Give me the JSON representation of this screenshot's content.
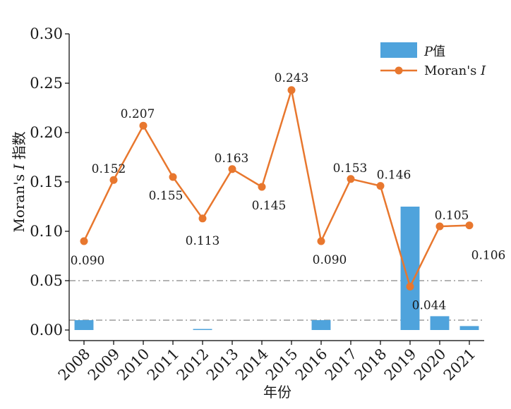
{
  "chart_data": {
    "type": "bar+line",
    "title": "",
    "xlabel": "年份",
    "ylabel_prefix": "Moran's ",
    "ylabel_italic": "I",
    "ylabel_suffix": " 指数",
    "ylim": [
      0,
      0.3
    ],
    "yticks": [
      "0.00",
      "0.05",
      "0.10",
      "0.15",
      "0.20",
      "0.25",
      "0.30"
    ],
    "categories": [
      "2008",
      "2009",
      "2010",
      "2011",
      "2012",
      "2013",
      "2014",
      "2015",
      "2016",
      "2017",
      "2018",
      "2019",
      "2020",
      "2021"
    ],
    "series": [
      {
        "name": "P值",
        "name_italic": "P",
        "name_rest": "值",
        "type": "bar",
        "color": "#4fa3dc",
        "values": [
          0.01,
          0,
          0,
          0,
          0.001,
          0,
          0,
          0,
          0.01,
          0,
          0,
          0.125,
          0.014,
          0.004
        ]
      },
      {
        "name": "Moran's I",
        "name_prefix": "Moran's ",
        "name_italic": "I",
        "type": "line",
        "color": "#e8772e",
        "values": [
          0.09,
          0.152,
          0.207,
          0.155,
          0.113,
          0.163,
          0.145,
          0.243,
          0.09,
          0.153,
          0.146,
          0.044,
          0.105,
          0.106
        ],
        "labels": [
          "0.090",
          "0.152",
          "0.207",
          "0.155",
          "0.113",
          "0.163",
          "0.145",
          "0.243",
          "0.090",
          "0.153",
          "0.146",
          "0.044",
          "0.105",
          "0.106"
        ]
      }
    ],
    "reference_lines": [
      0.05,
      0.01
    ],
    "reference_line_color": "#888888",
    "legend_position": "top-right"
  }
}
